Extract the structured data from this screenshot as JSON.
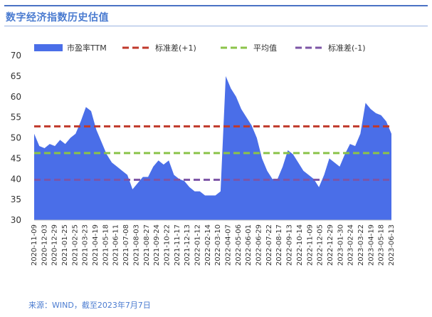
{
  "title": "数字经济指数历史估值",
  "source": "来源：WIND，截至2023年7月7日",
  "colors": {
    "area": "#4a6ee8",
    "plus_sd": "#c0392b",
    "mean": "#8bc34a",
    "minus_sd": "#7d55a6",
    "title": "#4a7bd0"
  },
  "chart_data": {
    "type": "area",
    "title": "数字经济指数历史估值",
    "xlabel": "",
    "ylabel": "",
    "ylim": [
      30,
      70
    ],
    "yticks": [
      30,
      35,
      40,
      45,
      50,
      55,
      60,
      65,
      70
    ],
    "grid": false,
    "legend_position": "top",
    "x_tick_labels": [
      "2020-11-09",
      "2020-12-03",
      "2020-12-29",
      "2021-01-25",
      "2021-02-25",
      "2021-03-23",
      "2021-04-19",
      "2021-05-18",
      "2021-06-11",
      "2021-07-08",
      "2021-08-03",
      "2021-08-27",
      "2021-09-24",
      "2021-10-22",
      "2021-11-17",
      "2021-12-13",
      "2022-01-12",
      "2022-02-14",
      "2022-03-10",
      "2022-04-07",
      "2022-05-06",
      "2022-06-01",
      "2022-06-29",
      "2022-07-22",
      "2022-08-17",
      "2022-09-13",
      "2022-10-14",
      "2022-11-09",
      "2022-12-05",
      "2022-12-29",
      "2023-01-30",
      "2023-02-24",
      "2023-03-22",
      "2023-04-19",
      "2023-05-18",
      "2023-06-13"
    ],
    "series": [
      {
        "name": "市盈率TTM",
        "type": "area",
        "values": [
          51,
          48,
          47.5,
          48.5,
          48,
          49.5,
          48.5,
          50,
          51,
          54,
          57.5,
          56.5,
          52,
          49,
          46,
          44,
          43,
          42,
          41,
          37.5,
          39,
          40.5,
          40.5,
          43,
          44.5,
          43.5,
          44.5,
          41,
          40,
          39.5,
          38,
          37,
          37,
          36,
          36,
          36,
          37,
          65,
          62,
          60,
          57,
          55,
          53,
          50,
          45,
          42,
          40,
          40,
          43,
          47,
          46,
          44,
          42,
          41,
          40,
          38,
          41,
          45,
          44,
          43,
          46,
          48.5,
          48,
          51,
          58.5,
          57,
          56,
          55.5,
          54,
          51
        ]
      },
      {
        "name": "标准差(+1)",
        "type": "line",
        "value": 52.8
      },
      {
        "name": "平均值",
        "type": "line",
        "value": 46.3
      },
      {
        "name": "标准差(-1)",
        "type": "line",
        "value": 39.8
      }
    ]
  }
}
